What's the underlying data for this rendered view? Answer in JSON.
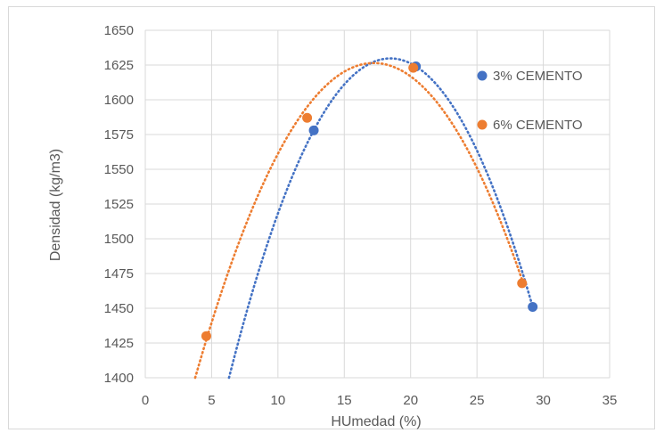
{
  "chart_data": {
    "type": "scatter",
    "title": "",
    "xlabel": "HUmedad (%)",
    "ylabel": "Densidad (kg/m3)",
    "xlim": [
      0,
      35
    ],
    "ylim": [
      1400,
      1650
    ],
    "x_ticks": [
      0,
      5,
      10,
      15,
      20,
      25,
      30,
      35
    ],
    "y_ticks": [
      1400,
      1425,
      1450,
      1475,
      1500,
      1525,
      1550,
      1575,
      1600,
      1625,
      1650
    ],
    "grid": true,
    "legend_position": "right",
    "series": [
      {
        "name": "3% CEMENTO",
        "color": "#4472C4",
        "points": [
          [
            12.7,
            1578
          ],
          [
            20.4,
            1624
          ],
          [
            29.2,
            1451
          ]
        ],
        "trendline": "polynomial-2"
      },
      {
        "name": "6% CEMENTO",
        "color": "#ED7D31",
        "points": [
          [
            4.6,
            1430
          ],
          [
            12.2,
            1587
          ],
          [
            20.2,
            1623
          ],
          [
            28.4,
            1468
          ]
        ],
        "trendline": "polynomial-2"
      }
    ]
  }
}
